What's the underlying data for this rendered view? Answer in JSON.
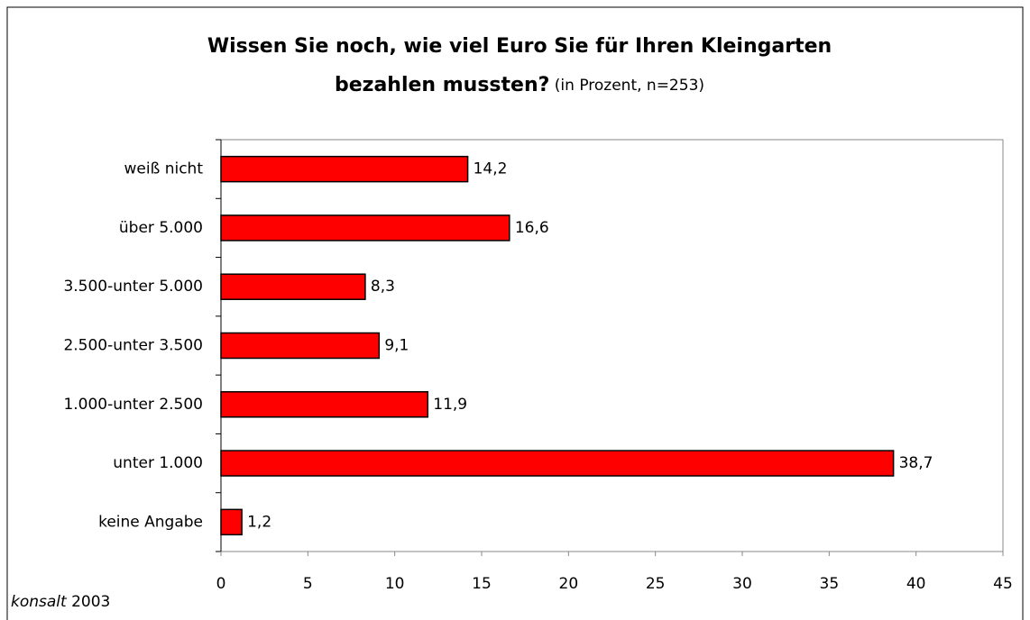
{
  "chart_data": {
    "type": "bar",
    "orientation": "horizontal",
    "title": [
      "Wissen Sie noch, wie viel Euro Sie für Ihren Kleingarten",
      "bezahlen mussten?"
    ],
    "subtitle": "(in Prozent, n=253)",
    "categories": [
      "weiß nicht",
      "über 5.000",
      "3.500-unter 5.000",
      "2.500-unter 3.500",
      "1.000-unter 2.500",
      "unter 1.000",
      "keine Angabe"
    ],
    "values": [
      14.2,
      16.6,
      8.3,
      9.1,
      11.9,
      38.7,
      1.2
    ],
    "value_labels": [
      "14,2",
      "16,6",
      "8,3",
      "9,1",
      "11,9",
      "38,7",
      "1,2"
    ],
    "color": "#ff0000",
    "xlim": [
      0,
      45
    ],
    "xticks": [
      0,
      5,
      10,
      15,
      20,
      25,
      30,
      35,
      40,
      45
    ],
    "footer": {
      "brand": "konsalt",
      "year": "2003"
    }
  }
}
